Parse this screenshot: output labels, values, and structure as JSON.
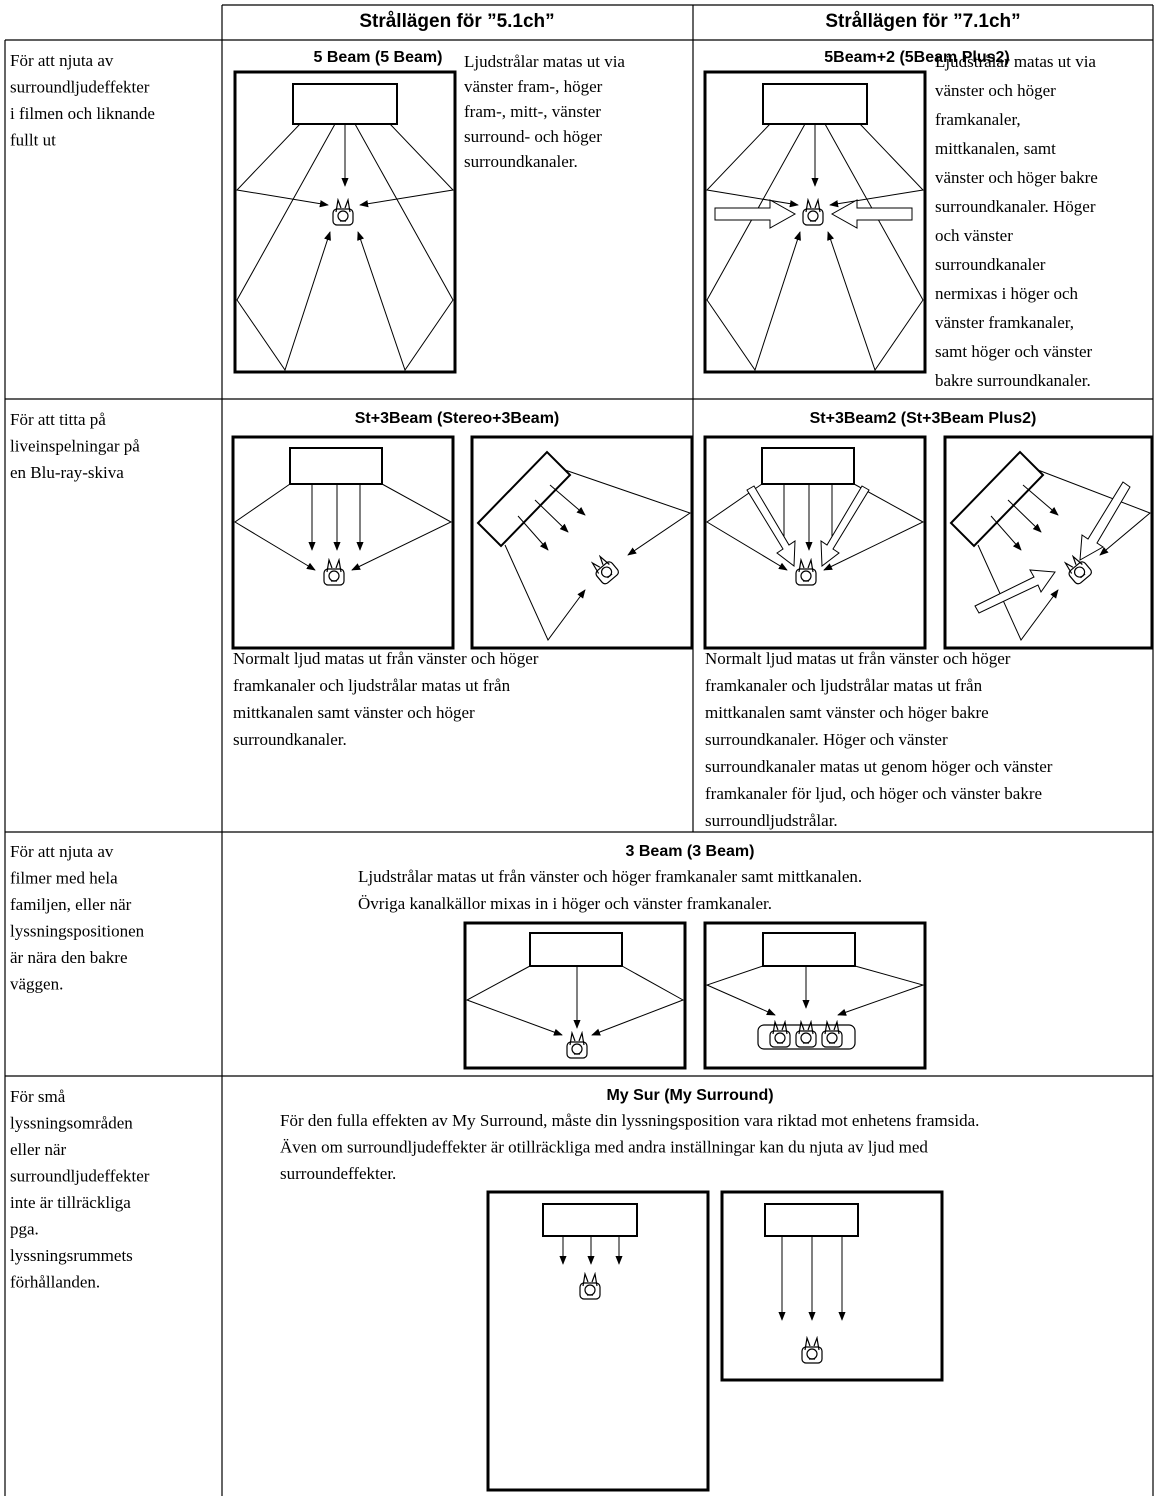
{
  "table": {
    "columns": [
      "Strållägen för ”5.1ch”",
      "Strållägen för ”7.1ch”"
    ],
    "rows": [
      {
        "purpose": [
          "För att njuta av",
          "surroundljudeffekter",
          "i filmen och liknande",
          "fullt ut"
        ],
        "beam_5_1": {
          "title": "5 Beam (5 Beam)",
          "description": [
            "Ljudstrålar matas ut via",
            "vänster fram-, höger",
            "fram-, mitt-, vänster",
            "surround- och höger",
            "surroundkanaler."
          ]
        },
        "beam_7_1": {
          "title": "5Beam+2 (5Beam Plus2)",
          "description": [
            "Ljudstrålar matas ut via",
            "vänster och höger",
            "framkanaler,",
            "mittkanalen, samt",
            "vänster och höger bakre",
            "surroundkanaler. Höger",
            "och vänster",
            "surroundkanaler",
            "nermixas i höger och",
            "vänster framkanaler,",
            "samt höger och vänster",
            "bakre surroundkanaler."
          ]
        }
      },
      {
        "purpose": [
          "För att titta på",
          "liveinspelningar på",
          "en Blu-ray-skiva"
        ],
        "beam_5_1": {
          "title": "St+3Beam (Stereo+3Beam)",
          "description": [
            "Normalt ljud matas ut från vänster och höger",
            "framkanaler och ljudstrålar matas ut från",
            "mittkanalen samt vänster och höger",
            "surroundkanaler."
          ]
        },
        "beam_7_1": {
          "title": "St+3Beam2 (St+3Beam Plus2)",
          "description": [
            "Normalt ljud matas ut från vänster och höger",
            "framkanaler och ljudstrålar matas ut från",
            "mittkanalen samt vänster och höger bakre",
            "surroundkanaler. Höger och vänster",
            "surroundkanaler matas ut genom höger och vänster",
            "framkanaler för ljud, och höger och vänster bakre",
            "surroundljudstrålar."
          ]
        }
      },
      {
        "purpose": [
          "För att njuta av",
          "filmer med hela",
          "familjen, eller när",
          "lyssningspositionen",
          "är nära den bakre",
          "väggen."
        ],
        "shared": {
          "title": "3 Beam (3 Beam)",
          "description": [
            "Ljudstrålar matas ut från vänster och höger framkanaler samt mittkanalen.",
            "Övriga kanalkällor mixas in i höger och vänster framkanaler."
          ]
        }
      },
      {
        "purpose": [
          "För små",
          "lyssningsområden",
          "eller när",
          "surroundljudeffekter",
          "inte är tillräckliga",
          "pga.",
          "lyssningsrummets",
          "förhållanden."
        ],
        "shared": {
          "title": "My Sur (My Surround)",
          "description": [
            "För den fulla effekten av My Surround, måste din lyssningsposition vara riktad mot enhetens framsida.",
            "Även om surroundljudeffekter är otillräckliga med andra inställningar kan du njuta av ljud med",
            "surroundeffekter."
          ]
        }
      }
    ]
  }
}
